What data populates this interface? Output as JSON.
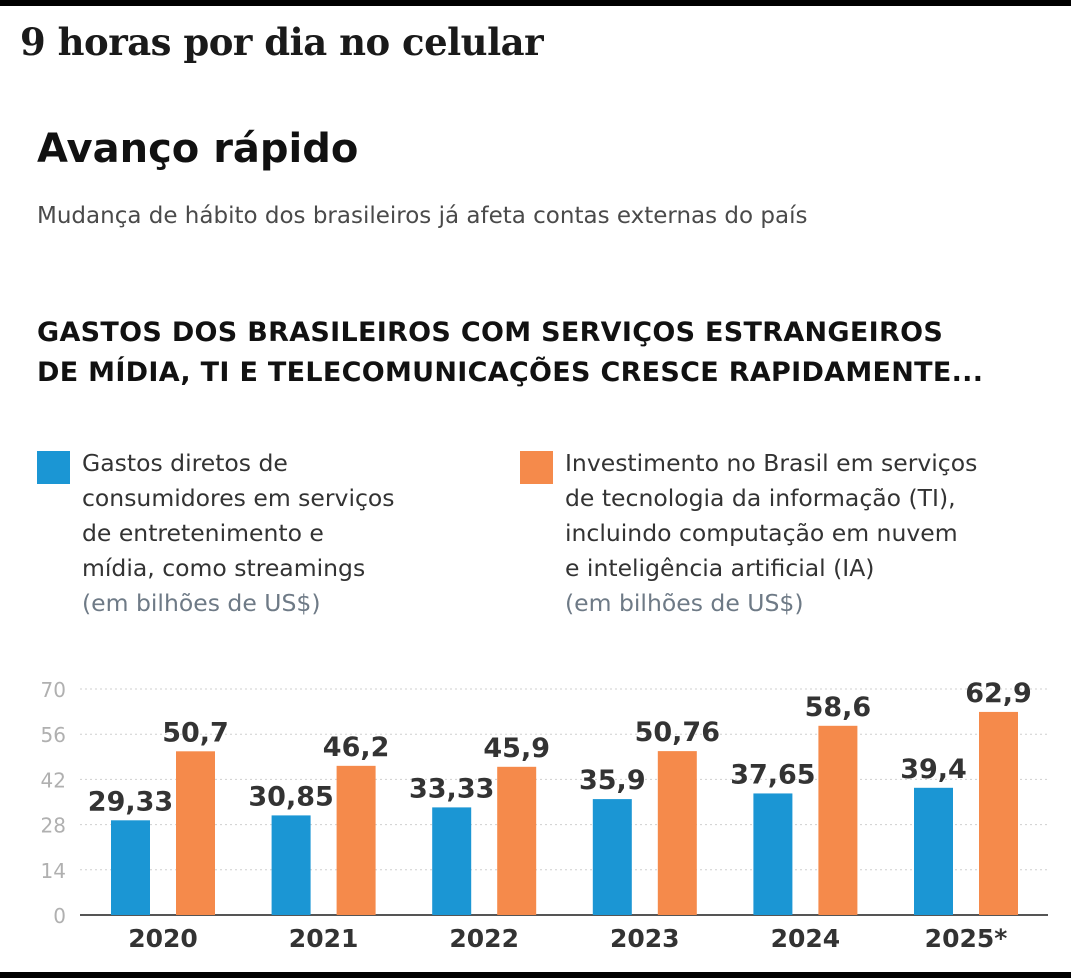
{
  "headline": "9 horas por dia no celular",
  "title": "Avanço rápido",
  "subtitle": "Mudança de hábito dos brasileiros já afeta contas externas do país",
  "chart_title_lines": [
    "GASTOS DOS BRASILEIROS COM SERVIÇOS ESTRANGEIROS",
    "DE MÍDIA, TI E TELECOMUNICAÇÕES CRESCE RAPIDAMENTE..."
  ],
  "legend": {
    "blue": {
      "lines": [
        "Gastos diretos de",
        "consumidores em serviços",
        "de entretenimento e",
        "mídia, como streamings"
      ],
      "unit": "(em bilhões de US$)"
    },
    "orange": {
      "lines": [
        "Investimento no Brasil em serviços",
        "de tecnologia da informação (TI),",
        "incluindo computação em nuvem",
        "e inteligência artificial (IA)"
      ],
      "unit": "(em bilhões de US$)"
    }
  },
  "colors": {
    "blue": "#1b96d4",
    "orange": "#f58a4b"
  },
  "chart_data": {
    "type": "bar",
    "categories": [
      "2020",
      "2021",
      "2022",
      "2023",
      "2024",
      "2025*"
    ],
    "series": [
      {
        "values": [
          29.33,
          30.85,
          33.33,
          35.9,
          37.65,
          39.4
        ],
        "labels": [
          "29,33",
          "30,85",
          "33,33",
          "35,9",
          "37,65",
          "39,4"
        ],
        "color": "#1b96d4"
      },
      {
        "values": [
          50.7,
          46.2,
          45.9,
          50.76,
          58.6,
          62.9
        ],
        "labels": [
          "50,7",
          "46,2",
          "45,9",
          "50,76",
          "58,6",
          "62,9"
        ],
        "color": "#f58a4b"
      }
    ],
    "yticks": [
      0,
      14,
      28,
      42,
      56,
      70
    ],
    "ylim": [
      0,
      70
    ],
    "grid": true
  }
}
